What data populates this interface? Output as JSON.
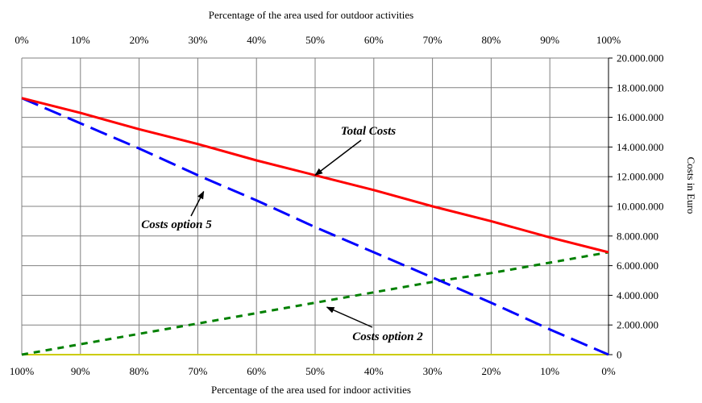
{
  "chart_data": {
    "type": "line",
    "top_xlabel": "Percentage of the area used for outdoor activities",
    "bottom_xlabel": "Percentage of the area used for indoor activities",
    "ylabel": "Costs in Euro",
    "top_ticks": [
      "0%",
      "10%",
      "20%",
      "30%",
      "40%",
      "50%",
      "60%",
      "70%",
      "80%",
      "90%",
      "100%"
    ],
    "bottom_ticks": [
      "100%",
      "90%",
      "80%",
      "70%",
      "60%",
      "50%",
      "40%",
      "30%",
      "20%",
      "10%",
      "0%"
    ],
    "y_ticks": [
      "0",
      "2.000.000",
      "4.000.000",
      "6.000.000",
      "8.000.000",
      "10.000.000",
      "12.000.000",
      "14.000.000",
      "16.000.000",
      "18.000.000",
      "20.000.000"
    ],
    "x_unit": "percentage of area used for outdoor activities",
    "xlim": [
      0,
      100
    ],
    "ylim": [
      0,
      20000000
    ],
    "grid": true,
    "series": [
      {
        "name": "Total Costs",
        "color": "#ff0000",
        "style": "solid",
        "x": [
          0,
          10,
          20,
          30,
          40,
          50,
          60,
          70,
          80,
          90,
          100
        ],
        "values": [
          17300000,
          16300000,
          15200000,
          14200000,
          13100000,
          12100000,
          11100000,
          10000000,
          9000000,
          7900000,
          6900000
        ]
      },
      {
        "name": "Costs option 5",
        "color": "#0000ff",
        "style": "long-dash",
        "x": [
          0,
          10,
          20,
          30,
          40,
          50,
          60,
          70,
          80,
          90,
          100
        ],
        "values": [
          17300000,
          15600000,
          13900000,
          12100000,
          10400000,
          8600000,
          6900000,
          5200000,
          3500000,
          1700000,
          0
        ]
      },
      {
        "name": "Costs option 2",
        "color": "#008000",
        "style": "short-dash",
        "x": [
          0,
          10,
          20,
          30,
          40,
          50,
          60,
          70,
          80,
          90,
          100
        ],
        "values": [
          0,
          700000,
          1400000,
          2100000,
          2800000,
          3500000,
          4200000,
          4900000,
          5500000,
          6200000,
          6900000
        ]
      }
    ],
    "baseline_color": "#cccc00",
    "annotations": [
      {
        "text": "Total Costs",
        "series": "Total Costs",
        "x": 50,
        "y": 12100000
      },
      {
        "text": "Costs option 5",
        "series": "Costs option 5",
        "x": 31,
        "y": 11000000
      },
      {
        "text": "Costs option 2",
        "series": "Costs option 2",
        "x": 52,
        "y": 3200000
      }
    ]
  }
}
